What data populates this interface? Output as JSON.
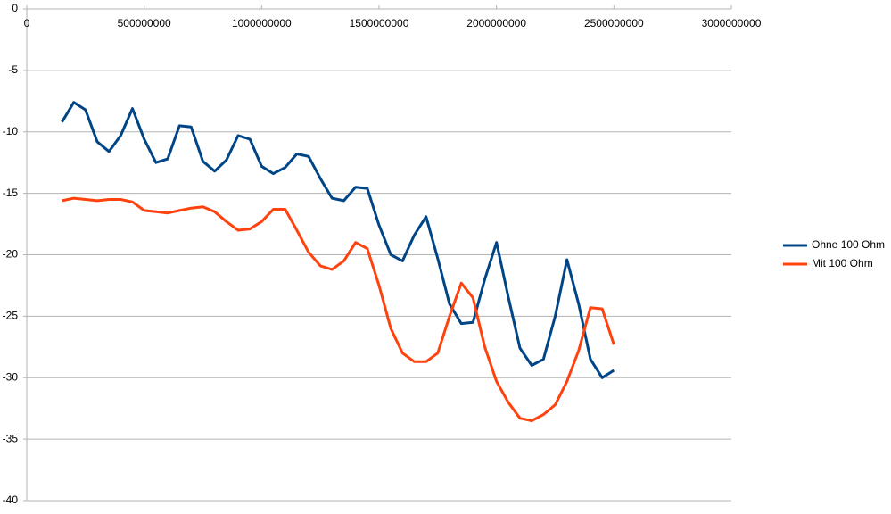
{
  "chart_data": {
    "type": "line",
    "x": [
      150000000,
      200000000,
      250000000,
      300000000,
      350000000,
      400000000,
      450000000,
      500000000,
      550000000,
      600000000,
      650000000,
      700000000,
      750000000,
      800000000,
      850000000,
      900000000,
      950000000,
      1000000000,
      1050000000,
      1100000000,
      1150000000,
      1200000000,
      1250000000,
      1300000000,
      1350000000,
      1400000000,
      1450000000,
      1500000000,
      1550000000,
      1600000000,
      1650000000,
      1700000000,
      1750000000,
      1800000000,
      1850000000,
      1900000000,
      1950000000,
      2000000000,
      2050000000,
      2100000000,
      2150000000,
      2200000000,
      2250000000,
      2300000000,
      2350000000,
      2400000000,
      2450000000,
      2500000000
    ],
    "series": [
      {
        "name": "Ohne 100 Ohm",
        "color": "#004586",
        "values": [
          -9.2,
          -7.6,
          -8.2,
          -10.8,
          -11.6,
          -10.3,
          -8.1,
          -10.6,
          -12.5,
          -12.2,
          -9.5,
          -9.6,
          -12.4,
          -13.2,
          -12.3,
          -10.3,
          -10.6,
          -12.8,
          -13.4,
          -12.9,
          -11.8,
          -12.0,
          -13.8,
          -15.4,
          -15.6,
          -14.5,
          -14.6,
          -17.6,
          -20.0,
          -20.5,
          -18.4,
          -16.9,
          -20.3,
          -24.0,
          -25.6,
          -25.5,
          -22.0,
          -19.0,
          -23.4,
          -27.6,
          -29.0,
          -28.5,
          -25.0,
          -20.4,
          -24.0,
          -28.5,
          -30.0,
          -29.4
        ]
      },
      {
        "name": "Mit 100 Ohm",
        "color": "#ff420e",
        "values": [
          -15.6,
          -15.4,
          -15.5,
          -15.6,
          -15.5,
          -15.5,
          -15.7,
          -16.4,
          -16.5,
          -16.6,
          -16.4,
          -16.2,
          -16.1,
          -16.5,
          -17.3,
          -18.0,
          -17.9,
          -17.3,
          -16.3,
          -16.3,
          -18.0,
          -19.8,
          -20.9,
          -21.2,
          -20.5,
          -19.0,
          -19.5,
          -22.5,
          -26.0,
          -28.0,
          -28.7,
          -28.7,
          -28.0,
          -25.0,
          -22.3,
          -23.5,
          -27.5,
          -30.3,
          -32.0,
          -33.3,
          -33.5,
          -33.0,
          -32.2,
          -30.3,
          -27.8,
          -24.3,
          -24.4,
          -27.3
        ]
      }
    ],
    "xlim": [
      0,
      3000000000
    ],
    "xticks": [
      0,
      500000000,
      1000000000,
      1500000000,
      2000000000,
      2500000000,
      3000000000
    ],
    "ylim": [
      -40,
      0
    ],
    "yticks": [
      0,
      -5,
      -10,
      -15,
      -20,
      -25,
      -30,
      -35,
      -40
    ],
    "grid": true,
    "legend": "right"
  }
}
